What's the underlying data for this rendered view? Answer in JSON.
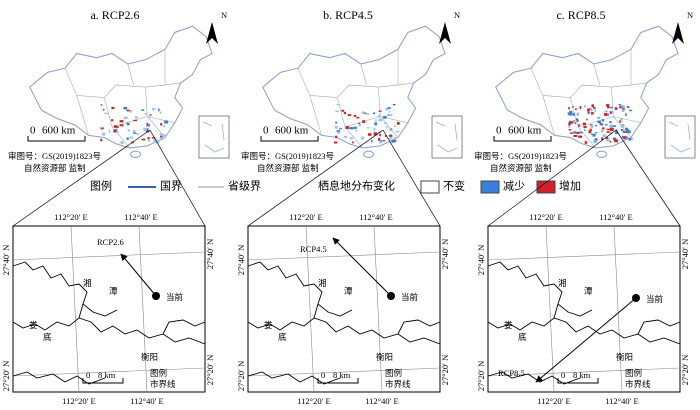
{
  "panels": [
    {
      "title": "a. RCP2.6",
      "north": "N",
      "scale": [
        "0",
        "600 km"
      ],
      "approval": [
        "审图号：GS(2019)1823号",
        "自然资源部 监制"
      ]
    },
    {
      "title": "b. RCP4.5",
      "north": "N",
      "scale": [
        "0",
        "600 km"
      ],
      "approval": [
        "审图号：GS(2019)1823号",
        "自然资源部 监制"
      ]
    },
    {
      "title": "c. RCP8.5",
      "north": "N",
      "scale": [
        "0",
        "600 km"
      ],
      "approval": [
        "审图号：GS(2019)1823号",
        "自然资源部 监制"
      ]
    }
  ],
  "legend": {
    "title": "图例",
    "lines": [
      "国界",
      "省级界"
    ],
    "change_title": "栖息地分布变化",
    "changes": [
      "不变",
      "减少",
      "增加"
    ]
  },
  "zoom_panels": [
    {
      "lon_labels": [
        "112°20′ E",
        "112°40′ E"
      ],
      "lat_labels": [
        "27°40′ N",
        "27°20′ N"
      ],
      "places": [
        "湘",
        "潭",
        "娄",
        "底",
        "衡阳"
      ],
      "current": "当前",
      "future": "RCP2.6",
      "scale": [
        "0",
        "8 km"
      ],
      "legend": [
        "图例",
        "市界线"
      ]
    },
    {
      "lon_labels": [
        "112°20′ E",
        "112°40′ E"
      ],
      "lat_labels": [
        "27°40′ N",
        "27°20′ N"
      ],
      "places": [
        "湘",
        "潭",
        "娄",
        "底",
        "衡阳"
      ],
      "current": "当前",
      "future": "RCP4.5",
      "scale": [
        "0",
        "8 km"
      ],
      "legend": [
        "图例",
        "市界线"
      ]
    },
    {
      "lon_labels": [
        "112°20′ E",
        "112°40′ E"
      ],
      "lat_labels": [
        "27°40′ N",
        "27°20′ N"
      ],
      "places": [
        "湘",
        "潭",
        "娄",
        "底",
        "衡阳"
      ],
      "current": "当前",
      "future": "RCP8.5",
      "scale": [
        "0",
        "8 km"
      ],
      "legend": [
        "图例",
        "市界线"
      ]
    }
  ]
}
